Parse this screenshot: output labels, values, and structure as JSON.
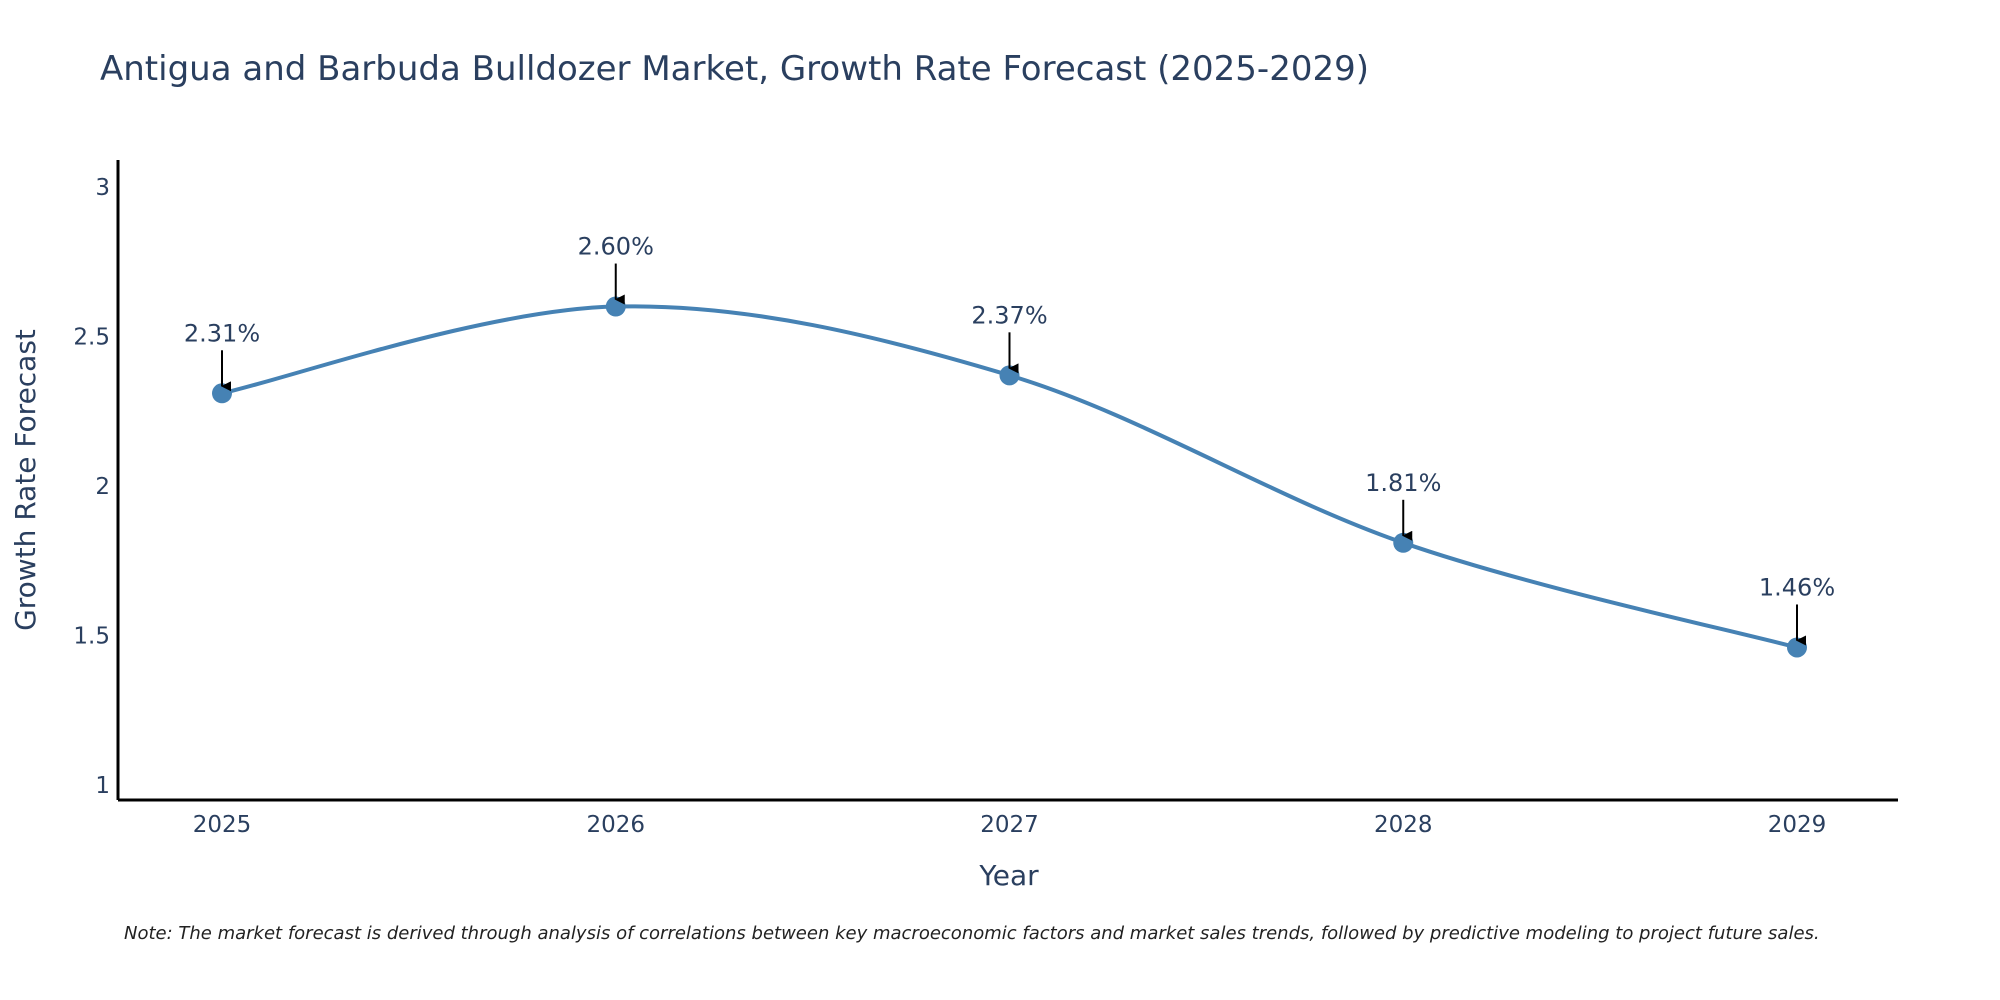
{
  "chart_data": {
    "type": "line",
    "title": "Antigua and Barbuda Bulldozer Market, Growth Rate Forecast (2025-2029)",
    "xlabel": "Year",
    "ylabel": "Growth Rate Forecast",
    "categories": [
      "2025",
      "2026",
      "2027",
      "2028",
      "2029"
    ],
    "series": [
      {
        "name": "Growth Rate Forecast",
        "values": [
          2.31,
          2.6,
          2.37,
          1.81,
          1.46
        ],
        "labels": [
          "2.31%",
          "2.60%",
          "2.37%",
          "1.81%",
          "1.46%"
        ],
        "color": "#4682b4"
      }
    ],
    "ylim": [
      0.95,
      3.09
    ],
    "yticks": [
      1,
      1.5,
      2,
      2.5,
      3
    ],
    "ytick_labels": [
      "1",
      "1.5",
      "2",
      "2.5",
      "3"
    ],
    "grid": false,
    "line_shape": "spline",
    "axis_color": "#000000",
    "annotation_arrow_color": "#000000",
    "note": "Note: The market forecast is derived through analysis of correlations between key macroeconomic factors and market sales trends, followed by predictive modeling to project future sales."
  }
}
